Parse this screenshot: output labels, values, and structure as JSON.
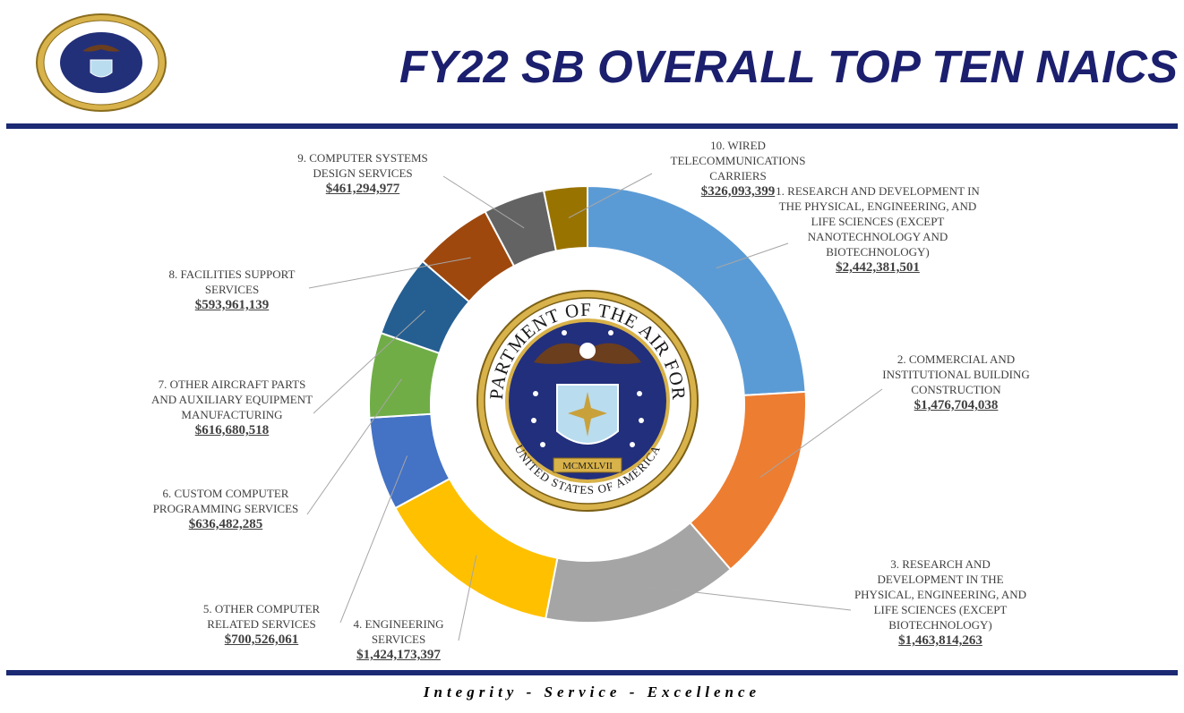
{
  "header": {
    "title": "FY22 SB OVERALL TOP TEN NAICS",
    "logo_text_top": "DEPARTMENT OF THE AIR FORCE",
    "logo_text_bottom": "UNITED STATES OF AMERICA",
    "logo_year": "MCMXLVII"
  },
  "footer": {
    "motto": "Integrity - Service - Excellence"
  },
  "colors": {
    "navy": "#1b2a73",
    "title": "#1b1f6e"
  },
  "chart_data": {
    "type": "pie",
    "style": "doughnut",
    "title": "FY22 SB OVERALL TOP TEN NAICS",
    "slices": [
      {
        "label": "1. RESEARCH AND DEVELOPMENT IN THE PHYSICAL, ENGINEERING, AND LIFE SCIENCES (EXCEPT NANOTECHNOLOGY AND BIOTECHNOLOGY)",
        "value": 2442381501,
        "value_text": "$2,442,381,501",
        "color": "#5b9bd5"
      },
      {
        "label": "2. COMMERCIAL AND INSTITUTIONAL BUILDING CONSTRUCTION",
        "value": 1476704038,
        "value_text": "$1,476,704,038",
        "color": "#ed7d31"
      },
      {
        "label": "3. RESEARCH AND DEVELOPMENT IN THE PHYSICAL, ENGINEERING, AND LIFE SCIENCES (EXCEPT BIOTECHNOLOGY)",
        "value": 1463814263,
        "value_text": "$1,463,814,263",
        "color": "#a5a5a5"
      },
      {
        "label": "4. ENGINEERING SERVICES",
        "value": 1424173397,
        "value_text": "$1,424,173,397",
        "color": "#ffc000"
      },
      {
        "label": "5. OTHER COMPUTER RELATED SERVICES",
        "value": 700526061,
        "value_text": "$700,526,061",
        "color": "#4472c4"
      },
      {
        "label": "6. CUSTOM COMPUTER PROGRAMMING SERVICES",
        "value": 636482285,
        "value_text": "$636,482,285",
        "color": "#70ad47"
      },
      {
        "label": "7. OTHER AIRCRAFT PARTS AND AUXILIARY EQUIPMENT MANUFACTURING",
        "value": 616680518,
        "value_text": "$616,680,518",
        "color": "#255e91"
      },
      {
        "label": "8. FACILITIES SUPPORT SERVICES",
        "value": 593961139,
        "value_text": "$593,961,139",
        "color": "#9e480e"
      },
      {
        "label": "9. COMPUTER SYSTEMS DESIGN SERVICES",
        "value": 461294977,
        "value_text": "$461,294,977",
        "color": "#636363"
      },
      {
        "label": "10. WIRED TELECOMMUNICATIONS CARRIERS",
        "value": 326093399,
        "value_text": "$326,093,399",
        "color": "#997300"
      }
    ]
  }
}
